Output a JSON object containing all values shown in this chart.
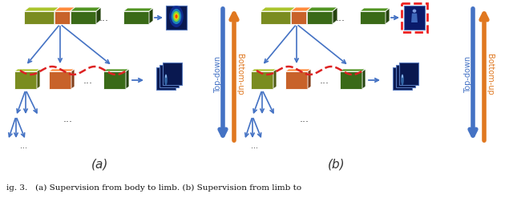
{
  "caption": "ig. 3.   (a) Supervision from body to limb. (b) Supervision from limb to",
  "label_a": "(a)",
  "label_b": "(b)",
  "bg_color": "#ffffff",
  "arrow_orange": "#e07820",
  "arrow_blue": "#4472c4",
  "arrow_red_dashed": "#dd2222",
  "box_olive": "#7a8c20",
  "box_orange": "#c8622a",
  "box_green_dark": "#3a6a18",
  "heatmap_dark": "#091850",
  "topdown_label": "Top-down",
  "bottomup_label": "Bottom-up"
}
